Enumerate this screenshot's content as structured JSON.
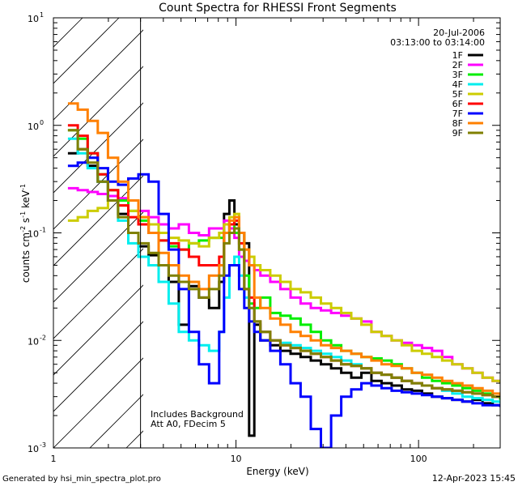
{
  "chart_data": {
    "type": "line",
    "title": "Count Spectra for RHESSI Front Segments",
    "xlabel": "Energy (keV)",
    "ylabel": "counts cm-2 s-1 keV-1",
    "ylabel_parts": [
      "counts cm",
      "-2",
      " s",
      "-1",
      " keV",
      "-1"
    ],
    "x_scale": "log",
    "y_scale": "log",
    "xlim": [
      1.0,
      280.0
    ],
    "ylim": [
      0.001,
      10.0
    ],
    "x_ticks": [
      {
        "value": 1,
        "label": "1"
      },
      {
        "value": 10,
        "label": "10"
      },
      {
        "value": 100,
        "label": "100"
      }
    ],
    "y_ticks": [
      {
        "value": 0.001,
        "label": "10",
        "exp": "-3"
      },
      {
        "value": 0.01,
        "label": "10",
        "exp": "-2"
      },
      {
        "value": 0.1,
        "label": "10",
        "exp": "-1"
      },
      {
        "value": 1,
        "label": "10",
        "exp": "0"
      },
      {
        "value": 10,
        "label": "10",
        "exp": "1"
      }
    ],
    "hatched_region": {
      "x_from": 1.0,
      "x_to": 3.0
    },
    "annotations": {
      "date": "20-Jul-2006",
      "time_range": "03:13:00 to 03:14:00",
      "background_note": "Includes Background",
      "attenuator_note": "Att A0, FDecim 5"
    },
    "footer": {
      "generator": "Generated by hsi_min_spectra_plot.pro",
      "timestamp": "12-Apr-2023 15:45"
    },
    "energy_bins": [
      1.2,
      1.36,
      1.54,
      1.75,
      1.99,
      2.26,
      2.57,
      2.92,
      3.32,
      3.77,
      4.28,
      4.86,
      5.52,
      6.27,
      7.12,
      8.09,
      8.6,
      9.2,
      9.8,
      10.4,
      11.1,
      11.8,
      12.6,
      13.6,
      15.4,
      17.5,
      19.9,
      22.6,
      25.7,
      29.2,
      33.2,
      37.7,
      42.8,
      48.6,
      55.2,
      62.7,
      71.2,
      80.9,
      91.9,
      104.4,
      118.6,
      134.7,
      153.0,
      173.8,
      197.4,
      224.2,
      254.6,
      280.0
    ],
    "series": [
      {
        "name": "1F",
        "color": "#000000",
        "values": [
          0.55,
          0.6,
          0.42,
          0.3,
          0.2,
          0.15,
          0.1,
          0.075,
          0.062,
          0.05,
          0.035,
          0.014,
          0.032,
          0.025,
          0.02,
          0.035,
          0.15,
          0.2,
          0.12,
          0.1,
          0.08,
          0.0013,
          0.014,
          0.01,
          0.009,
          0.008,
          0.0075,
          0.007,
          0.0065,
          0.006,
          0.0055,
          0.005,
          0.0045,
          0.005,
          0.0042,
          0.004,
          0.0038,
          0.0035,
          0.0034,
          0.0032,
          0.003,
          0.0029,
          0.0028,
          0.0027,
          0.0028,
          0.0026,
          0.0025,
          0.0025
        ]
      },
      {
        "name": "2F",
        "color": "#ff00ff",
        "values": [
          0.26,
          0.25,
          0.24,
          0.23,
          0.22,
          0.21,
          0.2,
          0.16,
          0.14,
          0.12,
          0.11,
          0.12,
          0.1,
          0.095,
          0.11,
          0.11,
          0.13,
          0.11,
          0.09,
          0.06,
          0.055,
          0.05,
          0.045,
          0.04,
          0.035,
          0.03,
          0.025,
          0.022,
          0.02,
          0.019,
          0.018,
          0.017,
          0.016,
          0.015,
          0.012,
          0.011,
          0.01,
          0.0095,
          0.009,
          0.0085,
          0.008,
          0.007,
          0.006,
          0.0055,
          0.005,
          0.0045,
          0.0042,
          0.004
        ]
      },
      {
        "name": "3F",
        "color": "#00ee00",
        "values": [
          0.9,
          0.75,
          0.55,
          0.35,
          0.25,
          0.2,
          0.16,
          0.13,
          0.1,
          0.085,
          0.075,
          0.07,
          0.08,
          0.085,
          0.09,
          0.09,
          0.1,
          0.12,
          0.1,
          0.07,
          0.04,
          0.022,
          0.02,
          0.025,
          0.018,
          0.017,
          0.016,
          0.014,
          0.012,
          0.01,
          0.009,
          0.008,
          0.0075,
          0.007,
          0.0068,
          0.0065,
          0.006,
          0.0055,
          0.005,
          0.0045,
          0.0042,
          0.004,
          0.0038,
          0.0036,
          0.0034,
          0.0032,
          0.003,
          0.0028
        ]
      },
      {
        "name": "4F",
        "color": "#00eeee",
        "values": [
          0.75,
          0.55,
          0.4,
          0.3,
          0.2,
          0.13,
          0.08,
          0.06,
          0.05,
          0.035,
          0.022,
          0.012,
          0.01,
          0.009,
          0.008,
          0.012,
          0.025,
          0.05,
          0.06,
          0.04,
          0.025,
          0.02,
          0.015,
          0.012,
          0.01,
          0.0095,
          0.009,
          0.0085,
          0.008,
          0.0075,
          0.007,
          0.0065,
          0.006,
          0.0055,
          0.005,
          0.0048,
          0.0045,
          0.0042,
          0.004,
          0.0038,
          0.0036,
          0.0034,
          0.0032,
          0.003,
          0.0029,
          0.0028,
          0.0027,
          0.0026
        ]
      },
      {
        "name": "5F",
        "color": "#cccc00",
        "values": [
          0.13,
          0.14,
          0.16,
          0.17,
          0.2,
          0.18,
          0.16,
          0.14,
          0.12,
          0.1,
          0.09,
          0.085,
          0.08,
          0.075,
          0.09,
          0.1,
          0.12,
          0.14,
          0.15,
          0.1,
          0.07,
          0.06,
          0.05,
          0.045,
          0.04,
          0.035,
          0.03,
          0.028,
          0.025,
          0.022,
          0.02,
          0.018,
          0.016,
          0.014,
          0.012,
          0.011,
          0.01,
          0.009,
          0.008,
          0.0075,
          0.007,
          0.0065,
          0.006,
          0.0055,
          0.005,
          0.0045,
          0.0042,
          0.004
        ]
      },
      {
        "name": "6F",
        "color": "#ff0000",
        "values": [
          1.0,
          0.8,
          0.55,
          0.35,
          0.25,
          0.18,
          0.14,
          0.12,
          0.1,
          0.085,
          0.08,
          0.07,
          0.06,
          0.05,
          0.05,
          0.06,
          0.1,
          0.12,
          0.13,
          0.08,
          0.03,
          0.025,
          0.015,
          0.012,
          0.01,
          0.009,
          0.0085,
          0.008,
          0.0075,
          0.007,
          0.0065,
          0.006,
          0.0058,
          0.0055,
          0.005,
          0.0048,
          0.0045,
          0.0042,
          0.004,
          0.0038,
          0.0036,
          0.0035,
          0.0034,
          0.0033,
          0.0032,
          0.0031,
          0.003,
          0.003
        ]
      },
      {
        "name": "7F",
        "color": "#0000ff",
        "values": [
          0.42,
          0.45,
          0.5,
          0.4,
          0.3,
          0.28,
          0.32,
          0.35,
          0.3,
          0.15,
          0.07,
          0.03,
          0.012,
          0.006,
          0.004,
          0.012,
          0.04,
          0.05,
          0.05,
          0.03,
          0.02,
          0.015,
          0.012,
          0.01,
          0.008,
          0.006,
          0.004,
          0.003,
          0.0015,
          0.001,
          0.002,
          0.003,
          0.0035,
          0.004,
          0.0038,
          0.0036,
          0.0034,
          0.0033,
          0.0032,
          0.0031,
          0.003,
          0.0029,
          0.0028,
          0.0027,
          0.0026,
          0.0025,
          0.0025,
          0.0024
        ]
      },
      {
        "name": "8F",
        "color": "#ff8000",
        "values": [
          1.6,
          1.4,
          1.1,
          0.85,
          0.5,
          0.3,
          0.2,
          0.14,
          0.1,
          0.065,
          0.05,
          0.04,
          0.035,
          0.03,
          0.04,
          0.05,
          0.1,
          0.13,
          0.14,
          0.1,
          0.07,
          0.05,
          0.025,
          0.02,
          0.016,
          0.014,
          0.012,
          0.011,
          0.01,
          0.009,
          0.0085,
          0.008,
          0.0075,
          0.007,
          0.0065,
          0.006,
          0.0058,
          0.0055,
          0.005,
          0.0048,
          0.0045,
          0.0042,
          0.004,
          0.0038,
          0.0036,
          0.0034,
          0.0032,
          0.003
        ]
      },
      {
        "name": "9F",
        "color": "#808000",
        "values": [
          0.9,
          0.6,
          0.45,
          0.3,
          0.2,
          0.14,
          0.1,
          0.08,
          0.065,
          0.05,
          0.04,
          0.035,
          0.03,
          0.025,
          0.03,
          0.04,
          0.08,
          0.1,
          0.11,
          0.07,
          0.03,
          0.02,
          0.015,
          0.012,
          0.01,
          0.009,
          0.0085,
          0.008,
          0.0075,
          0.007,
          0.0065,
          0.006,
          0.0058,
          0.0055,
          0.005,
          0.0048,
          0.0045,
          0.0042,
          0.004,
          0.0038,
          0.0036,
          0.0035,
          0.0034,
          0.0033,
          0.0032,
          0.0031,
          0.003,
          0.003
        ]
      }
    ]
  }
}
